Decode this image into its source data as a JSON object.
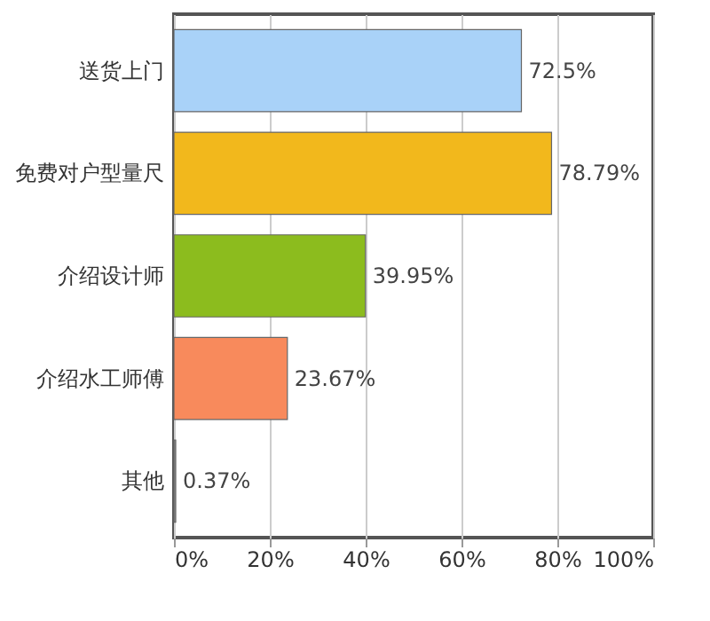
{
  "chart_data": {
    "type": "bar",
    "orientation": "horizontal",
    "categories": [
      "送货上门",
      "免费对户型量尺",
      "介绍设计师",
      "介绍水工师傅",
      "其他"
    ],
    "values": [
      72.5,
      78.79,
      39.95,
      23.67,
      0.37
    ],
    "colors": [
      "#a9d2f8",
      "#f2b81c",
      "#8cbc1e",
      "#f88a5c",
      "#8a8a8a"
    ],
    "value_labels": [
      "72.5%",
      "78.79%",
      "39.95%",
      "23.67%",
      "0.37%"
    ],
    "xlim": [
      0,
      100
    ],
    "xticks": [
      {
        "value": 0,
        "label": "0%"
      },
      {
        "value": 20,
        "label": "20%"
      },
      {
        "value": 40,
        "label": "40%"
      },
      {
        "value": 60,
        "label": "60%"
      },
      {
        "value": 80,
        "label": "80%"
      },
      {
        "value": 100,
        "label": "100%"
      }
    ],
    "grid": "x"
  }
}
